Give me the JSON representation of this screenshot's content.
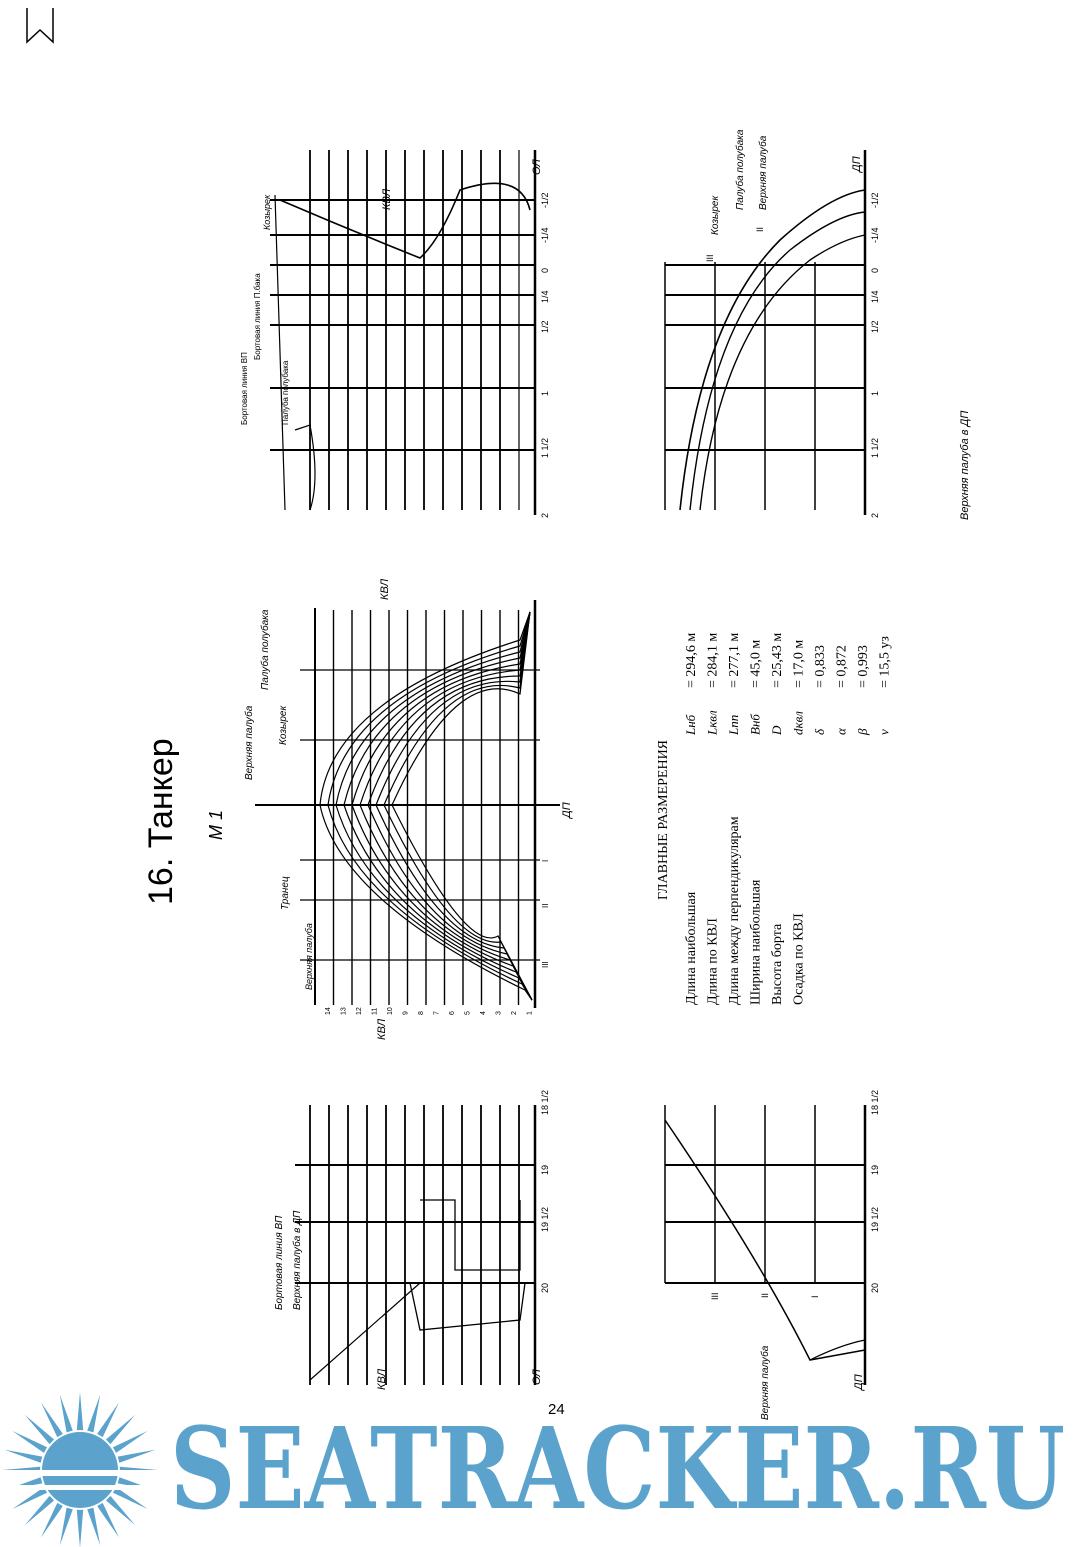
{
  "page": {
    "title": "16. Танкер",
    "scale": "М 1",
    "page_number": "24",
    "bookmark_icon": "bookmark-icon"
  },
  "labels": {
    "kvl": "КВЛ",
    "ol": "ОЛ",
    "dp": "ДП",
    "upper_deck": "Верхняя палуба",
    "upper_deck_dp": "Верхняя палуба в ДП",
    "side_line_vp": "Бортовая линия ВП",
    "side_line_forecastle": "Бортовая линия П.бака",
    "forecastle_deck": "Палуба полубака",
    "bulwark": "Козырек",
    "transom": "Транец",
    "bow_stations": [
      "2",
      "1 1/2",
      "1",
      "1/2",
      "1/4",
      "0",
      "-1/4",
      "-1/2"
    ],
    "stern_stations": [
      "20",
      "19 1/2",
      "19",
      "18 1/2"
    ],
    "roman": [
      "II",
      "III",
      "I"
    ],
    "waterlines": [
      "14",
      "13",
      "12",
      "11",
      "10",
      "9",
      "8",
      "7",
      "6",
      "5",
      "4",
      "3",
      "2",
      "1"
    ]
  },
  "main_dimensions": {
    "header": "ГЛАВНЫЕ РАЗМЕРЕНИЯ",
    "rows": [
      {
        "name": "Длина наибольшая",
        "symbol": "Lнб",
        "value": "= 294,6 м"
      },
      {
        "name": "Длина по КВЛ",
        "symbol": "Lквл",
        "value": "= 284,1 м"
      },
      {
        "name": "Длина между перпендикулярам",
        "symbol": "Lпп",
        "value": "= 277,1 м"
      },
      {
        "name": "Ширина наибольшая",
        "symbol": "Bнб",
        "value": "= 45,0 м"
      },
      {
        "name": "Высота борта",
        "symbol": "D",
        "value": "= 25,43 м"
      },
      {
        "name": "Осадка по КВЛ",
        "symbol": "dквл",
        "value": "= 17,0 м"
      },
      {
        "name": "",
        "symbol": "δ",
        "value": "= 0,833"
      },
      {
        "name": "",
        "symbol": "α",
        "value": "= 0,872"
      },
      {
        "name": "",
        "symbol": "β",
        "value": "= 0,993"
      },
      {
        "name": "",
        "symbol": "v",
        "value": "= 15,5 уз"
      }
    ]
  },
  "watermark": {
    "text": "SEATRACKER.RU",
    "color": "#5ba3cc",
    "icon": "sun-icon"
  }
}
